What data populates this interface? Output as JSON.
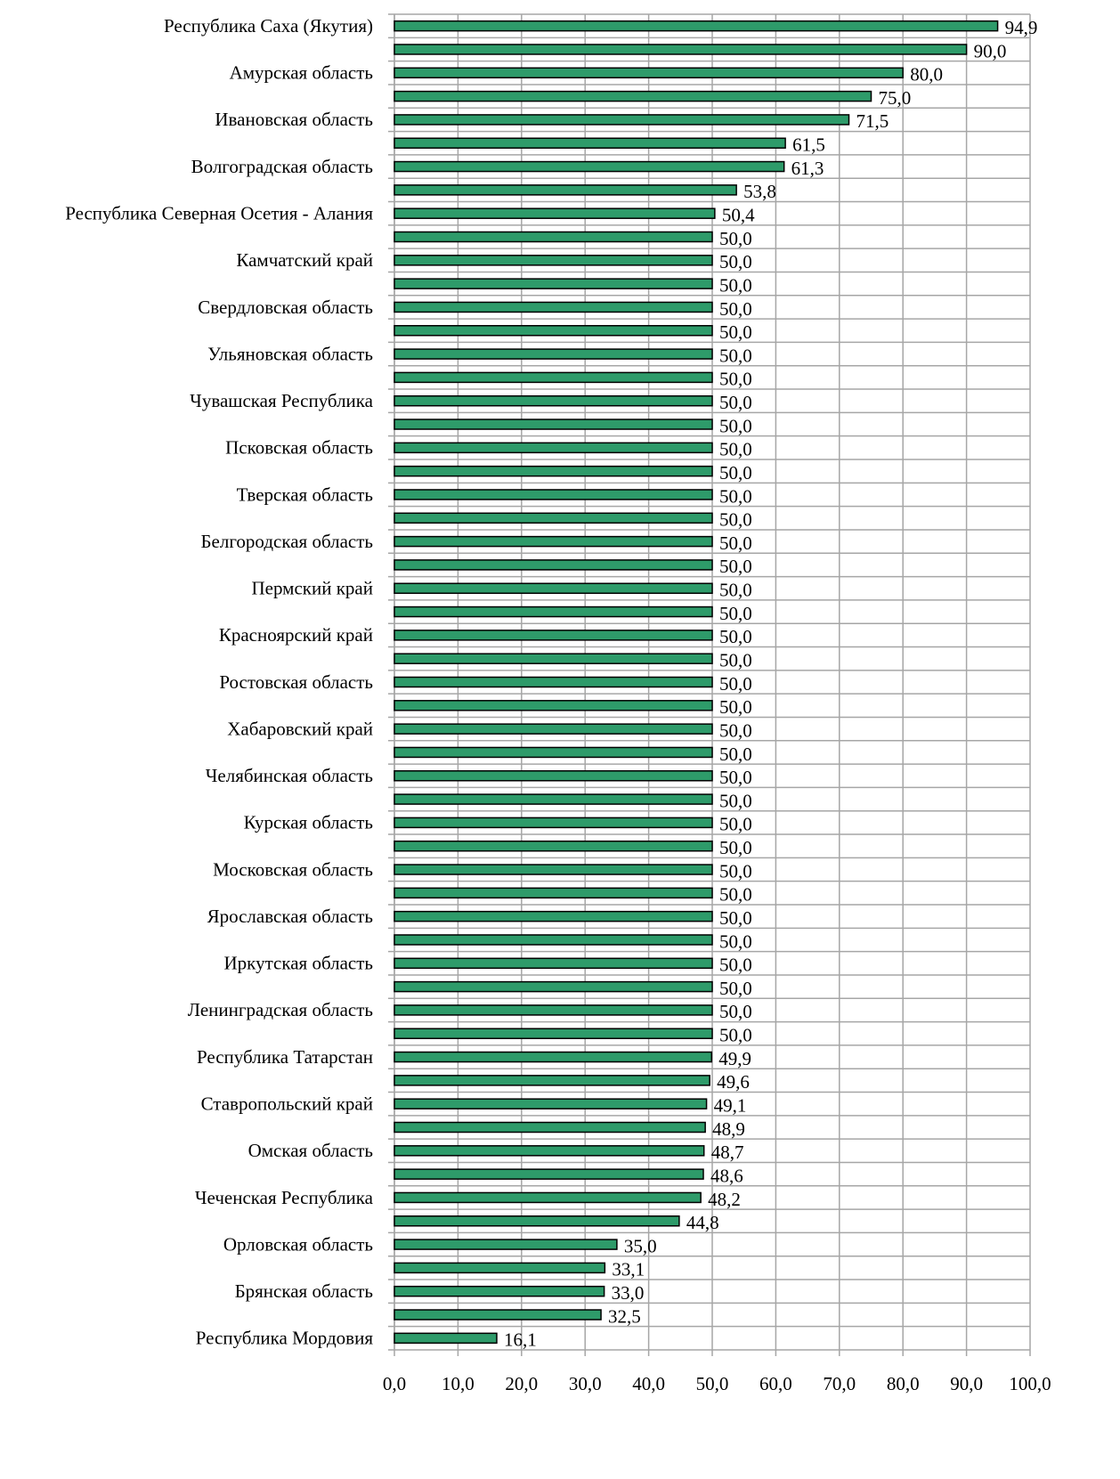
{
  "chart_data": {
    "type": "bar",
    "orientation": "horizontal",
    "color": "#2e9b6a",
    "grid": true,
    "categories": [
      "Республика Саха (Якутия)",
      null,
      "Амурская область",
      null,
      "Ивановская область",
      null,
      "Волгоградская область",
      null,
      "Республика Северная Осетия - Алания",
      null,
      "Камчатский край",
      null,
      "Свердловская область",
      null,
      "Ульяновская область",
      null,
      "Чувашская Республика",
      null,
      "Псковская область",
      null,
      "Тверская область",
      null,
      "Белгородская область",
      null,
      "Пермский край",
      null,
      "Красноярский край",
      null,
      "Ростовская область",
      null,
      "Хабаровский край",
      null,
      "Челябинская область",
      null,
      "Курская область",
      null,
      "Московская область",
      null,
      "Ярославская область",
      null,
      "Иркутская область",
      null,
      "Ленинградская область",
      null,
      "Республика Татарстан",
      null,
      "Ставропольский край",
      null,
      "Омская область",
      null,
      "Чеченская Республика",
      null,
      "Орловская область",
      null,
      "Брянская область",
      null,
      "Республика Мордовия"
    ],
    "values": [
      94.9,
      90.0,
      80.0,
      75.0,
      71.5,
      61.5,
      61.3,
      53.8,
      50.4,
      50.0,
      50.0,
      50.0,
      50.0,
      50.0,
      50.0,
      50.0,
      50.0,
      50.0,
      50.0,
      50.0,
      50.0,
      50.0,
      50.0,
      50.0,
      50.0,
      50.0,
      50.0,
      50.0,
      50.0,
      50.0,
      50.0,
      50.0,
      50.0,
      50.0,
      50.0,
      50.0,
      50.0,
      50.0,
      50.0,
      50.0,
      50.0,
      50.0,
      50.0,
      50.0,
      49.9,
      49.6,
      49.1,
      48.9,
      48.7,
      48.6,
      48.2,
      44.8,
      35.0,
      33.1,
      33.0,
      32.5,
      16.1
    ],
    "value_labels": [
      "94,9",
      "90,0",
      "80,0",
      "75,0",
      "71,5",
      "61,5",
      "61,3",
      "53,8",
      "50,4",
      "50,0",
      "50,0",
      "50,0",
      "50,0",
      "50,0",
      "50,0",
      "50,0",
      "50,0",
      "50,0",
      "50,0",
      "50,0",
      "50,0",
      "50,0",
      "50,0",
      "50,0",
      "50,0",
      "50,0",
      "50,0",
      "50,0",
      "50,0",
      "50,0",
      "50,0",
      "50,0",
      "50,0",
      "50,0",
      "50,0",
      "50,0",
      "50,0",
      "50,0",
      "50,0",
      "50,0",
      "50,0",
      "50,0",
      "50,0",
      "50,0",
      "49,9",
      "49,6",
      "49,1",
      "48,9",
      "48,7",
      "48,6",
      "48,2",
      "44,8",
      "35,0",
      "33,1",
      "33,0",
      "32,5",
      "16,1"
    ],
    "xlim": [
      0,
      100
    ],
    "xticks": [
      {
        "value": 0,
        "label": "0,0"
      },
      {
        "value": 10,
        "label": "10,0"
      },
      {
        "value": 20,
        "label": "20,0"
      },
      {
        "value": 30,
        "label": "30,0"
      },
      {
        "value": 40,
        "label": "40,0"
      },
      {
        "value": 50,
        "label": "50,0"
      },
      {
        "value": 60,
        "label": "60,0"
      },
      {
        "value": 70,
        "label": "70,0"
      },
      {
        "value": 80,
        "label": "80,0"
      },
      {
        "value": 90,
        "label": "90,0"
      },
      {
        "value": 100,
        "label": "100,0"
      }
    ]
  }
}
